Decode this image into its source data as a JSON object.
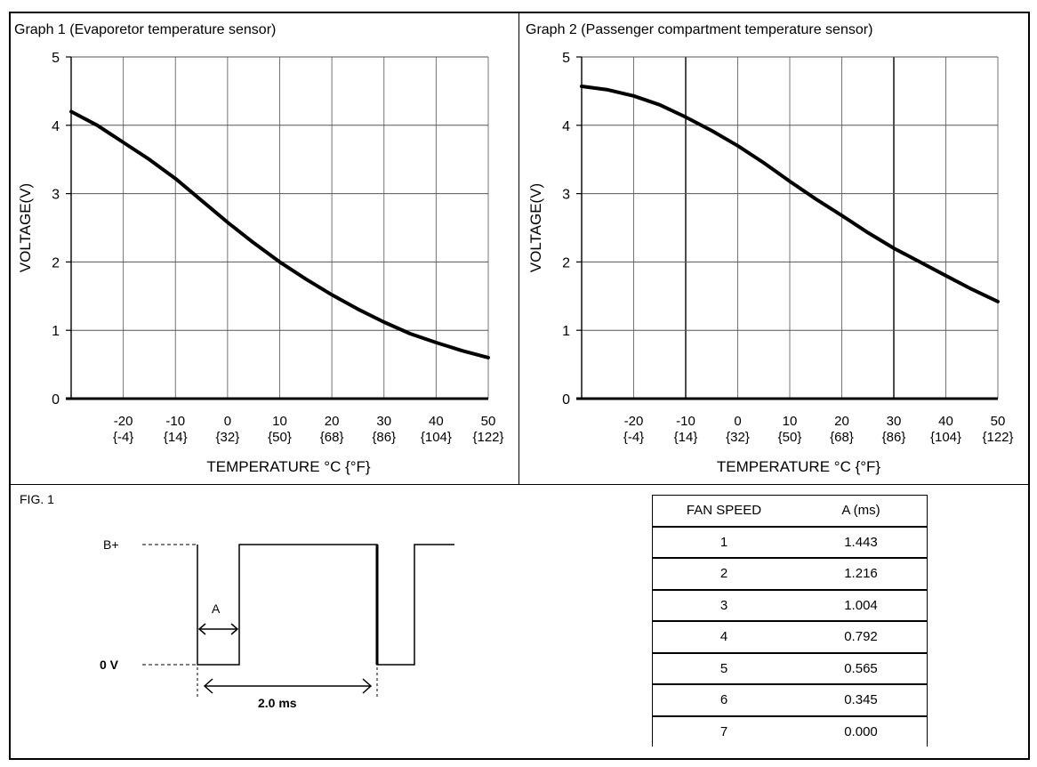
{
  "chart_data": [
    {
      "type": "line",
      "title": "Graph 1 (Evaporetor temperature sensor)",
      "xlabel": "TEMPERATURE °C {°F}",
      "ylabel": "VOLTAGE(V)",
      "xlim": [
        -30,
        50
      ],
      "ylim": [
        0,
        5
      ],
      "xticks": [
        -20,
        -10,
        0,
        10,
        20,
        30,
        40,
        50
      ],
      "xtick_labels": [
        "-20",
        "-10",
        "0",
        "10",
        "20",
        "30",
        "40",
        "50"
      ],
      "xtick_sublabels": [
        "{-4}",
        "{14}",
        "{32}",
        "{50}",
        "{68}",
        "{86}",
        "{104}",
        "{122}"
      ],
      "yticks": [
        0,
        1,
        2,
        3,
        4,
        5
      ],
      "ytick_labels": [
        "0",
        "1",
        "2",
        "3",
        "4",
        "5"
      ],
      "x_unit": "°C",
      "x_alt_unit": "°F",
      "series": [
        {
          "name": "Evaporator sensor voltage",
          "x": [
            -30,
            -25,
            -20,
            -15,
            -10,
            -5,
            0,
            5,
            10,
            15,
            20,
            25,
            30,
            35,
            40,
            45,
            50
          ],
          "y": [
            4.2,
            4.0,
            3.75,
            3.5,
            3.22,
            2.9,
            2.58,
            2.28,
            2.0,
            1.75,
            1.52,
            1.31,
            1.12,
            0.95,
            0.82,
            0.7,
            0.6
          ]
        }
      ]
    },
    {
      "type": "line",
      "title": "Graph 2 (Passenger compartment temperature sensor)",
      "xlabel": "TEMPERATURE °C {°F}",
      "ylabel": "VOLTAGE(V)",
      "xlim": [
        -30,
        50
      ],
      "ylim": [
        0,
        5
      ],
      "xticks": [
        -20,
        -10,
        0,
        10,
        20,
        30,
        40,
        50
      ],
      "xtick_labels": [
        "-20",
        "-10",
        "0",
        "10",
        "20",
        "30",
        "40",
        "50"
      ],
      "xtick_sublabels": [
        "{-4}",
        "{14}",
        "{32}",
        "{50}",
        "{68}",
        "{86}",
        "{104}",
        "{122}"
      ],
      "yticks": [
        0,
        1,
        2,
        3,
        4,
        5
      ],
      "ytick_labels": [
        "0",
        "1",
        "2",
        "3",
        "4",
        "5"
      ],
      "x_unit": "°C",
      "x_alt_unit": "°F",
      "series": [
        {
          "name": "Passenger compartment sensor voltage",
          "x": [
            -30,
            -25,
            -20,
            -15,
            -10,
            -5,
            0,
            5,
            10,
            15,
            20,
            25,
            30,
            35,
            40,
            45,
            50
          ],
          "y": [
            4.57,
            4.52,
            4.43,
            4.3,
            4.12,
            3.92,
            3.7,
            3.45,
            3.18,
            2.92,
            2.68,
            2.43,
            2.2,
            2.0,
            1.8,
            1.6,
            1.42
          ]
        }
      ]
    }
  ],
  "fig1": {
    "label": "FIG. 1",
    "b_plus_label": "B+",
    "zero_label": "0 V",
    "a_label": "A",
    "period_label": "2.0 ms"
  },
  "fan_table": {
    "headers": [
      "FAN SPEED",
      "A (ms)"
    ],
    "rows": [
      [
        "1",
        "1.443"
      ],
      [
        "2",
        "1.216"
      ],
      [
        "3",
        "1.004"
      ],
      [
        "4",
        "0.792"
      ],
      [
        "5",
        "0.565"
      ],
      [
        "6",
        "0.345"
      ],
      [
        "7",
        "0.000"
      ]
    ]
  }
}
